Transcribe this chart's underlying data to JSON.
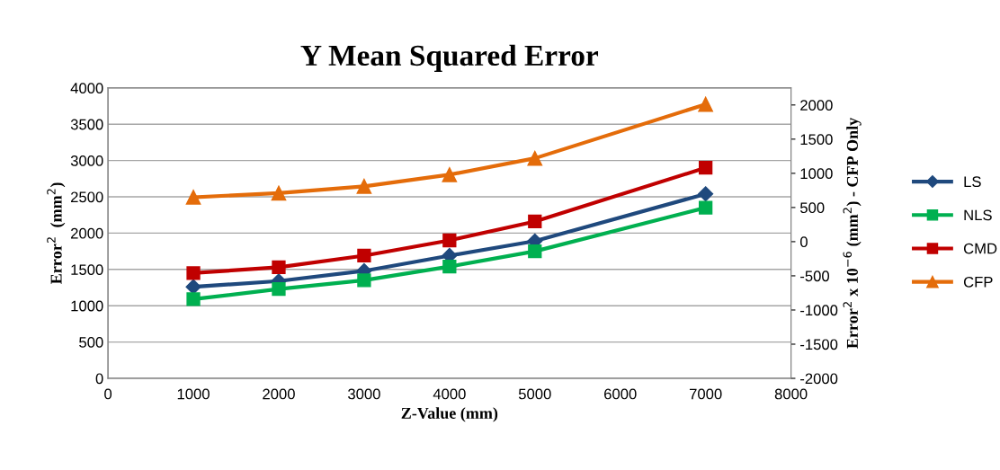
{
  "chart_data": {
    "type": "line",
    "title": "Y Mean Squared Error",
    "xlabel": "Z-Value (mm)",
    "ylabel": "Error$^{2}$  (mm$^{2}$)",
    "y2label": "Error$^{2}$ x 10$^{−6}$ (mm$^{2}$) - CFP Only",
    "x": [
      1000,
      2000,
      3000,
      4000,
      5000,
      7000
    ],
    "series": [
      {
        "name": "LS",
        "color": "#1f497d",
        "marker": "diamond",
        "values": [
          1260,
          1340,
          1480,
          1690,
          1890,
          2540
        ]
      },
      {
        "name": "NLS",
        "color": "#00b050",
        "marker": "square",
        "values": [
          1090,
          1230,
          1350,
          1540,
          1750,
          2350
        ]
      },
      {
        "name": "CMD",
        "color": "#c00000",
        "marker": "square",
        "values": [
          1450,
          1530,
          1690,
          1900,
          2160,
          2900
        ]
      },
      {
        "name": "CFP",
        "color": "#e46c0a",
        "marker": "triangle",
        "axis": "y2",
        "values": [
          650,
          710,
          810,
          980,
          1220,
          2010
        ]
      }
    ],
    "xlim": [
      0,
      8000
    ],
    "xticks": [
      0,
      1000,
      2000,
      3000,
      4000,
      5000,
      6000,
      7000,
      8000
    ],
    "ylim": [
      0,
      4000
    ],
    "yticks": [
      0,
      500,
      1000,
      1500,
      2000,
      2500,
      3000,
      3500,
      4000
    ],
    "y2lim": [
      -2000,
      2250
    ],
    "y2ticks": [
      -2000,
      -1500,
      -1000,
      -500,
      0,
      500,
      1000,
      1500,
      2000
    ],
    "grid": "y",
    "legend": "right",
    "line_style": "solid"
  }
}
